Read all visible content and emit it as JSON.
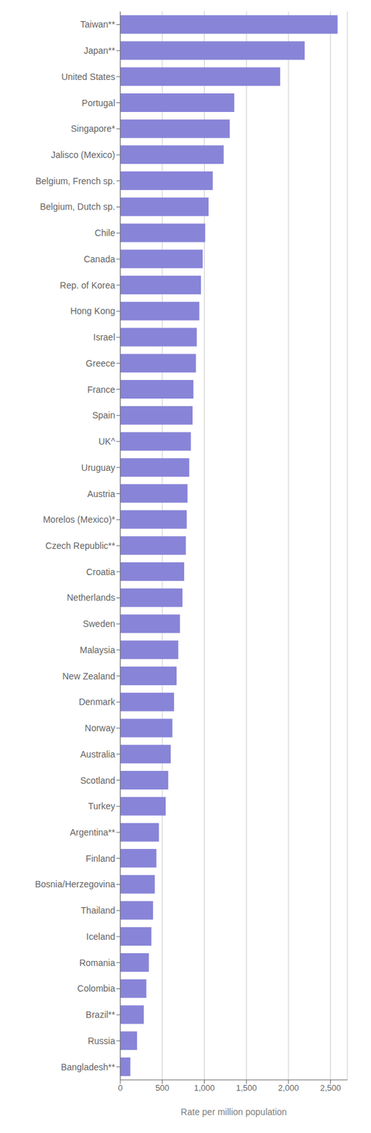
{
  "chart_data": {
    "type": "bar",
    "orientation": "horizontal",
    "categories": [
      "Taiwan**",
      "Japan**",
      "United States",
      "Portugal",
      "Singapore*",
      "Jalisco (Mexico)",
      "Belgium, French sp.",
      "Belgium, Dutch sp.",
      "Chile",
      "Canada",
      "Rep. of Korea",
      "Hong Kong",
      "Israel",
      "Greece",
      "France",
      "Spain",
      "UK^",
      "Uruguay",
      "Austria",
      "Morelos (Mexico)*",
      "Czech Republic**",
      "Croatia",
      "Netherlands",
      "Sweden",
      "Malaysia",
      "New Zealand",
      "Denmark",
      "Norway",
      "Australia",
      "Scotland",
      "Turkey",
      "Argentina**",
      "Finland",
      "Bosnia/Herzegovina",
      "Thailand",
      "Iceland",
      "Romania",
      "Colombia",
      "Brazil**",
      "Russia",
      "Bangladesh**"
    ],
    "values": [
      2584,
      2193,
      1901,
      1356,
      1302,
      1230,
      1100,
      1050,
      1010,
      980,
      960,
      940,
      910,
      900,
      870,
      860,
      840,
      820,
      800,
      790,
      780,
      760,
      740,
      710,
      690,
      670,
      640,
      620,
      600,
      570,
      540,
      460,
      430,
      410,
      390,
      370,
      340,
      310,
      280,
      200,
      120
    ],
    "color": "#8884d8",
    "xlabel": "Rate per million population",
    "xlim": [
      0,
      2700
    ],
    "xticks": [
      0,
      500,
      {
        "value": 1000,
        "label": "1,000"
      },
      {
        "value": 1500,
        "label": "1,500"
      },
      {
        "value": 2000,
        "label": "2,000"
      },
      {
        "value": 2500,
        "label": "2,500"
      }
    ],
    "grid": true
  }
}
